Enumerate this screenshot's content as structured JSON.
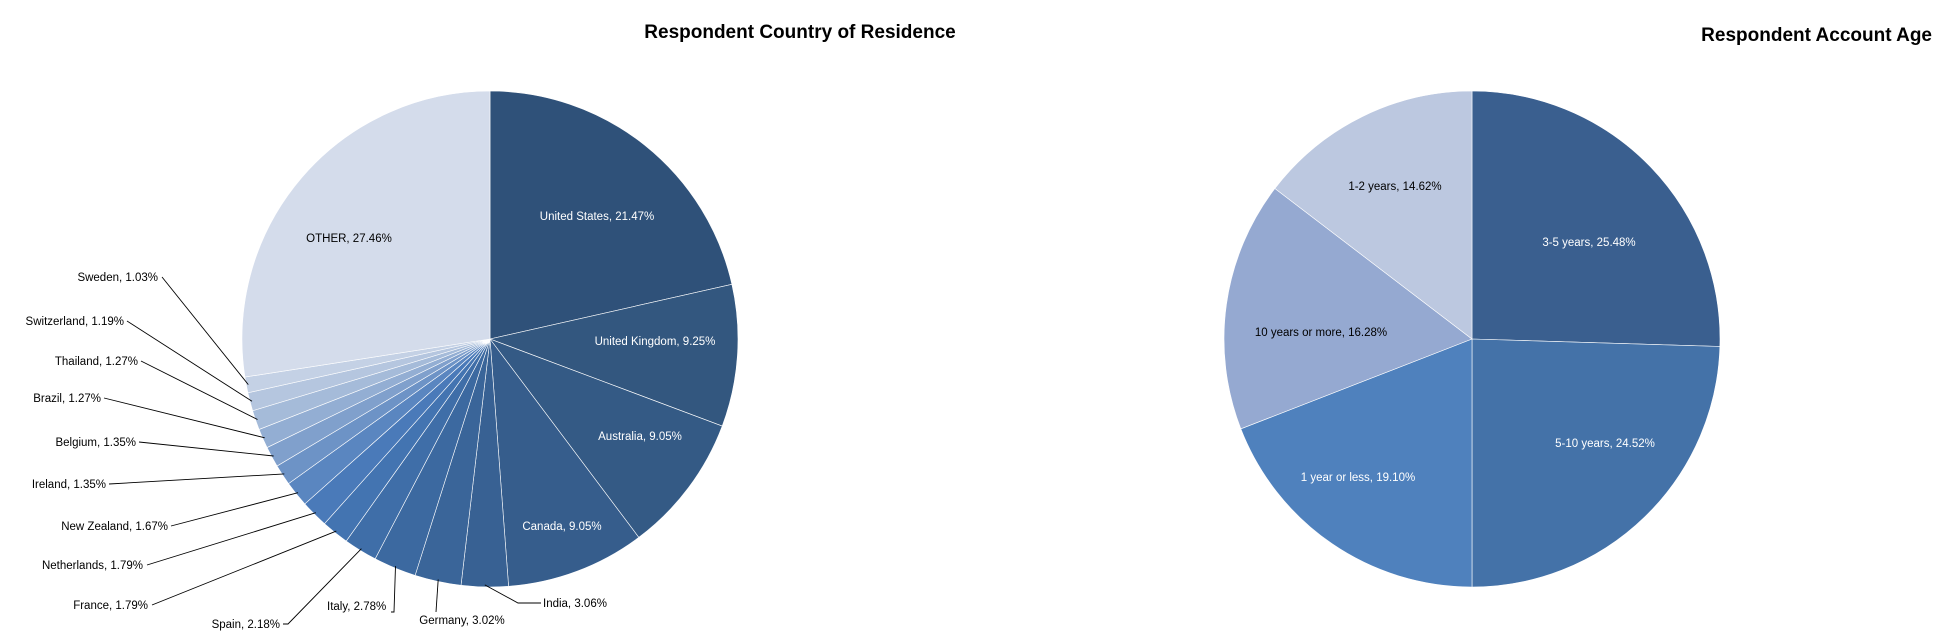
{
  "chart_data": [
    {
      "type": "pie",
      "title": "Respondent Country of Residence",
      "slices": [
        {
          "label": "United States",
          "value": 21.47,
          "text": "United States, 21.47%",
          "color": "#2f5179",
          "text_color": "#ffffff"
        },
        {
          "label": "United Kingdom",
          "value": 9.25,
          "text": "United Kingdom, 9.25%",
          "color": "#33577f",
          "text_color": "#ffffff"
        },
        {
          "label": "Australia",
          "value": 9.05,
          "text": "Australia, 9.05%",
          "color": "#345a85",
          "text_color": "#ffffff"
        },
        {
          "label": "Canada",
          "value": 9.05,
          "text": "Canada, 9.05%",
          "color": "#365d8c",
          "text_color": "#ffffff"
        },
        {
          "label": "India",
          "value": 3.06,
          "text": "India, 3.06%",
          "color": "#386193",
          "text_color": "#000000"
        },
        {
          "label": "Germany",
          "value": 3.02,
          "text": "Germany, 3.02%",
          "color": "#3a6599",
          "text_color": "#000000"
        },
        {
          "label": "Italy",
          "value": 2.78,
          "text": "Italy, 2.78%",
          "color": "#3c69a0",
          "text_color": "#000000"
        },
        {
          "label": "Spain",
          "value": 2.18,
          "text": "Spain, 2.18%",
          "color": "#3f6ea8",
          "text_color": "#000000"
        },
        {
          "label": "France",
          "value": 1.79,
          "text": "France, 1.79%",
          "color": "#4374b1",
          "text_color": "#000000"
        },
        {
          "label": "Netherlands",
          "value": 1.79,
          "text": "Netherlands, 1.79%",
          "color": "#4a7ab9",
          "text_color": "#000000"
        },
        {
          "label": "New Zealand",
          "value": 1.67,
          "text": "New Zealand, 1.67%",
          "color": "#5a86c0",
          "text_color": "#000000"
        },
        {
          "label": "Ireland",
          "value": 1.35,
          "text": "Ireland, 1.35%",
          "color": "#6d93c6",
          "text_color": "#000000"
        },
        {
          "label": "Belgium",
          "value": 1.35,
          "text": "Belgium, 1.35%",
          "color": "#80a0cc",
          "text_color": "#000000"
        },
        {
          "label": "Brazil",
          "value": 1.27,
          "text": "Brazil, 1.27%",
          "color": "#93aed3",
          "text_color": "#000000"
        },
        {
          "label": "Thailand",
          "value": 1.27,
          "text": "Thailand, 1.27%",
          "color": "#a5bbd9",
          "text_color": "#000000"
        },
        {
          "label": "Switzerland",
          "value": 1.19,
          "text": "Switzerland, 1.19%",
          "color": "#b5c6df",
          "text_color": "#000000"
        },
        {
          "label": "Sweden",
          "value": 1.03,
          "text": "Sweden,  1.03%",
          "color": "#c4d1e5",
          "text_color": "#000000"
        },
        {
          "label": "OTHER",
          "value": 27.46,
          "text": "OTHER,  27.46%",
          "color": "#d4dceb",
          "text_color": "#000000"
        }
      ]
    },
    {
      "type": "pie",
      "title": "Respondent Account Age",
      "slices": [
        {
          "label": "3-5 years",
          "value": 25.48,
          "text": "3-5 years, 25.48%",
          "color": "#3a5f8f",
          "text_color": "#ffffff"
        },
        {
          "label": "5-10 years",
          "value": 24.52,
          "text": "5-10 years, 24.52%",
          "color": "#4472a8",
          "text_color": "#ffffff"
        },
        {
          "label": "1 year or less",
          "value": 19.1,
          "text": "1 year or less, 19.10%",
          "color": "#4f81bd",
          "text_color": "#ffffff"
        },
        {
          "label": "10 years or more",
          "value": 16.28,
          "text": "10 years or more,  16.28%",
          "color": "#95a9d1",
          "text_color": "#000000"
        },
        {
          "label": "1-2 years",
          "value": 14.62,
          "text": "1-2 years, 14.62%",
          "color": "#bcc8e0",
          "text_color": "#000000"
        }
      ]
    }
  ]
}
